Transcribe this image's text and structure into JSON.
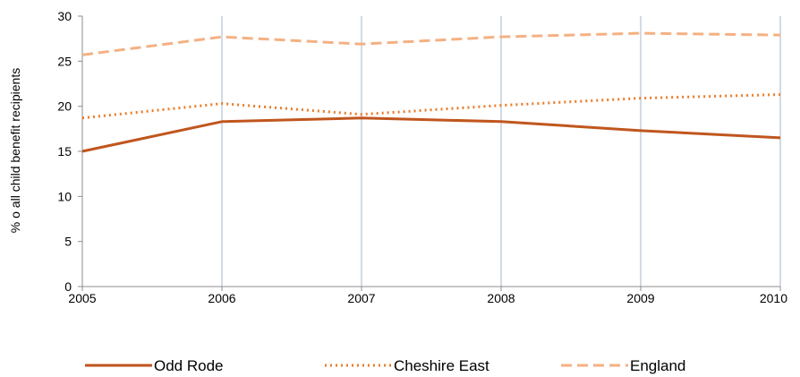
{
  "chart_data": {
    "type": "line",
    "title": "",
    "xlabel": "",
    "ylabel": "% o all child benefit recipients",
    "x": [
      "2005",
      "2006",
      "2007",
      "2008",
      "2009",
      "2010"
    ],
    "ylim": [
      0,
      30
    ],
    "yticks": [
      0,
      5,
      10,
      15,
      20,
      25,
      30
    ],
    "grid": "vertical",
    "legend_position": "bottom",
    "series": [
      {
        "name": "Odd Rode",
        "values": [
          15.0,
          18.3,
          18.7,
          18.3,
          17.3,
          16.5
        ],
        "color": "#c0561d",
        "style": "solid"
      },
      {
        "name": "Cheshire East",
        "values": [
          18.7,
          20.3,
          19.1,
          20.1,
          20.9,
          21.3
        ],
        "color": "#e87d2b",
        "style": "dotted"
      },
      {
        "name": "England",
        "values": [
          25.7,
          27.7,
          26.9,
          27.7,
          28.1,
          27.9
        ],
        "color": "#f4b183",
        "style": "dashed"
      }
    ]
  }
}
